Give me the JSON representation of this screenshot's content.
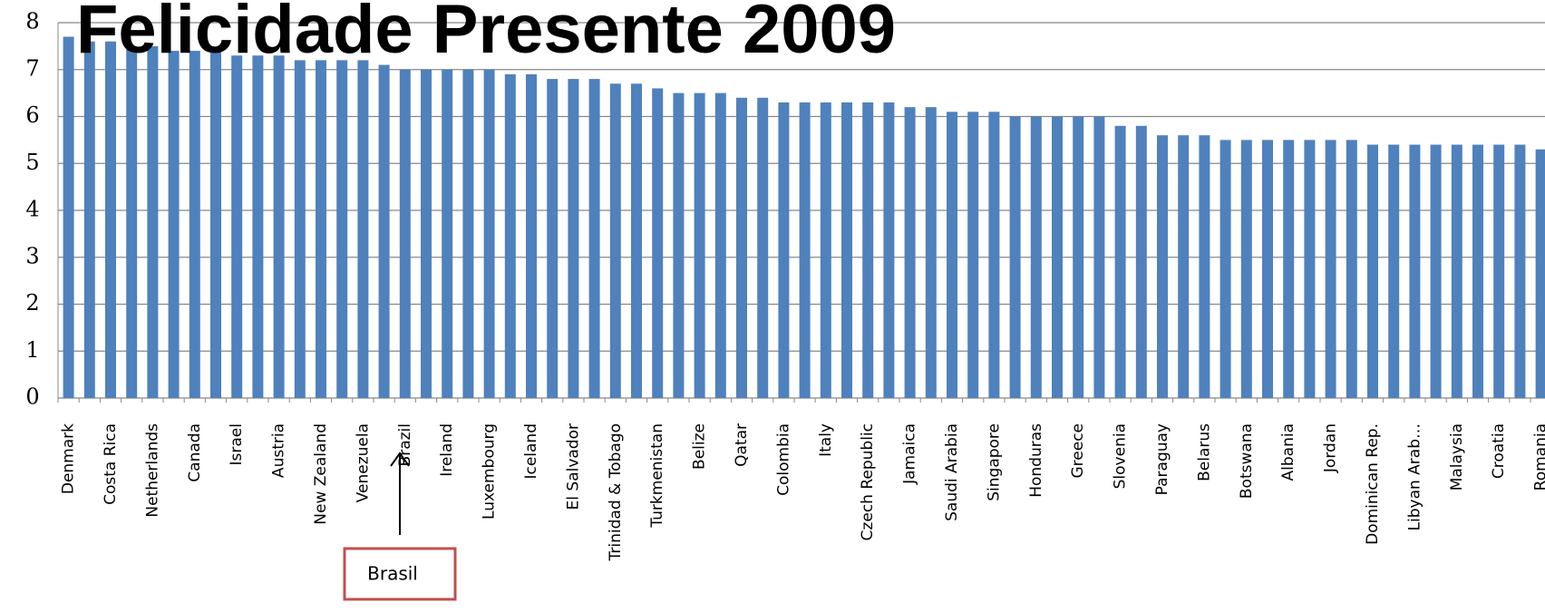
{
  "chart_data": {
    "type": "bar",
    "title": "Felicidade Presente 2009",
    "annotation": "Brasil",
    "categories": [
      "Denmark",
      null,
      "Costa Rica",
      null,
      "Netherlands",
      null,
      "Canada",
      null,
      "Israel",
      null,
      "Austria",
      null,
      "New Zealand",
      null,
      "Venezuela",
      null,
      "Brazil",
      null,
      "Ireland",
      null,
      "Luxembourg",
      null,
      "Iceland",
      null,
      "El Salvador",
      null,
      "Trinidad & Tobago",
      null,
      "Turkmenistan",
      null,
      "Belize",
      null,
      "Qatar",
      null,
      "Colombia",
      null,
      "Italy",
      null,
      "Czech Republic",
      null,
      "Jamaica",
      null,
      "Saudi Arabia",
      null,
      "Singapore",
      null,
      "Honduras",
      null,
      "Greece",
      null,
      "Slovenia",
      null,
      "Paraguay",
      null,
      "Belarus",
      null,
      "Botswana",
      null,
      "Albania",
      null,
      "Jordan",
      null,
      "Dominican Rep.",
      null,
      "Libyan Arab…",
      null,
      "Malaysia",
      null,
      "Croatia",
      null,
      "Romania"
    ],
    "values": [
      7.7,
      7.6,
      7.6,
      7.5,
      7.5,
      7.4,
      7.4,
      7.4,
      7.3,
      7.3,
      7.3,
      7.2,
      7.2,
      7.2,
      7.2,
      7.1,
      7.0,
      7.0,
      7.0,
      7.0,
      7.0,
      6.9,
      6.9,
      6.8,
      6.8,
      6.8,
      6.7,
      6.7,
      6.6,
      6.5,
      6.5,
      6.5,
      6.4,
      6.4,
      6.3,
      6.3,
      6.3,
      6.3,
      6.3,
      6.3,
      6.2,
      6.2,
      6.1,
      6.1,
      6.1,
      6.0,
      6.0,
      6.0,
      6.0,
      6.0,
      5.8,
      5.8,
      5.6,
      5.6,
      5.6,
      5.5,
      5.5,
      5.5,
      5.5,
      5.5,
      5.5,
      5.5,
      5.4,
      5.4,
      5.4,
      5.4,
      5.4,
      5.4,
      5.4,
      5.4,
      5.3
    ],
    "color": "#4f81bd",
    "ylim": [
      0,
      8
    ],
    "yticks": [
      0,
      1,
      2,
      3,
      4,
      5,
      6,
      7,
      8
    ],
    "grid": true
  }
}
